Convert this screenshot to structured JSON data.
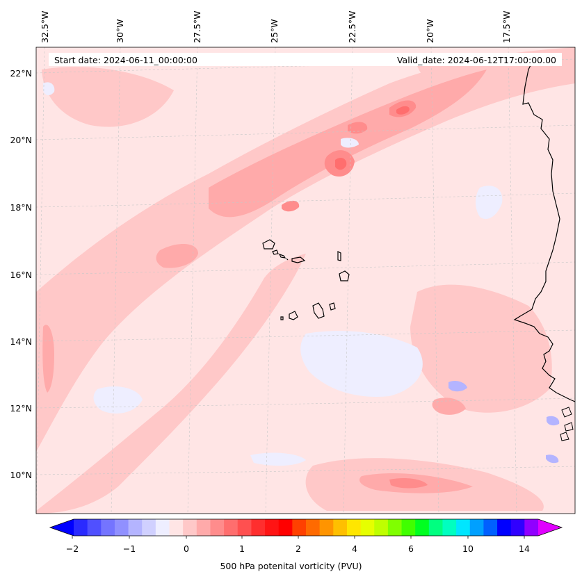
{
  "header": {
    "start_date": "Start date: 2024-06-11_00:00:00",
    "valid_date": "Valid_date: 2024-06-12T17:00:00.00"
  },
  "map": {
    "longitude_labels": [
      "32.5°W",
      "30°W",
      "27.5°W",
      "25°W",
      "22.5°W",
      "20°W",
      "17.5°W"
    ],
    "latitude_labels": [
      "22°N",
      "20°N",
      "18°N",
      "16°N",
      "14°N",
      "12°N",
      "10°N"
    ],
    "gridlines": true,
    "background_level_color": "#ffe5e5"
  },
  "colorbar": {
    "label": "500 hPa potenital vorticity (PVU)",
    "tick_labels": [
      "−2",
      "−1",
      "0",
      "1",
      "2",
      "4",
      "6",
      "10",
      "14"
    ],
    "colors": [
      "#0000ff",
      "#2a2aff",
      "#5050ff",
      "#7474ff",
      "#9090ff",
      "#b4b4ff",
      "#d0d0ff",
      "#eeeeff",
      "#ffe5e5",
      "#ffc8c8",
      "#ffaaaa",
      "#ff8c8c",
      "#ff6e6e",
      "#ff5050",
      "#ff2e2e",
      "#ff1414",
      "#ff0000",
      "#ff4000",
      "#ff6a00",
      "#ff9400",
      "#ffbf00",
      "#ffe600",
      "#e6ff00",
      "#bfff00",
      "#80ff00",
      "#40ff00",
      "#00ff20",
      "#00ff80",
      "#00ffc0",
      "#00e6ff",
      "#00a0ff",
      "#0060ff",
      "#0000ff",
      "#3000ff",
      "#9000ff",
      "#e000ff"
    ],
    "extend": "both"
  }
}
